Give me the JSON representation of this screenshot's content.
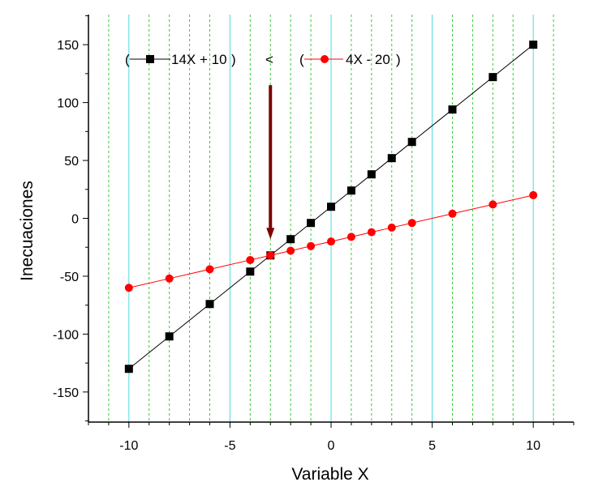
{
  "chart_data": {
    "type": "line",
    "xlabel": "Variable X",
    "ylabel": "Inecuaciones",
    "xlim": [
      -12,
      12
    ],
    "ylim": [
      -176,
      176
    ],
    "xticks": [
      -10,
      -5,
      0,
      5,
      10
    ],
    "yticks": [
      -150,
      -100,
      -50,
      0,
      50,
      100,
      150
    ],
    "grid": {
      "major_x": [
        -10,
        -5,
        0,
        5,
        10
      ],
      "minor_x": [
        -11,
        -9,
        -8,
        -7,
        -6,
        -4,
        -3,
        -2,
        -1,
        1,
        2,
        3,
        4,
        6,
        7,
        8,
        9,
        11
      ],
      "major_color": "#4dd9e0",
      "minor_color": "#33cc33"
    },
    "series": [
      {
        "name": "14X + 10",
        "color": "#000000",
        "marker": "square",
        "x": [
          -10,
          -8,
          -6,
          -4,
          -3,
          -2,
          -1,
          0,
          1,
          2,
          3,
          4,
          6,
          8,
          10
        ],
        "y": [
          -130,
          -102,
          -74,
          -46,
          -32,
          -18,
          -4,
          10,
          24,
          38,
          52,
          66,
          94,
          122,
          150
        ]
      },
      {
        "name": "4X - 20",
        "color": "#ff0000",
        "marker": "circle",
        "x": [
          -10,
          -8,
          -6,
          -4,
          -3,
          -2,
          -1,
          0,
          1,
          2,
          3,
          4,
          6,
          8,
          10
        ],
        "y": [
          -60,
          -52,
          -44,
          -36,
          -32,
          -28,
          -24,
          -20,
          -16,
          -12,
          -8,
          -4,
          4,
          12,
          20
        ]
      }
    ],
    "legend": {
      "placement": "top-left",
      "left_series_label": "14X + 10",
      "operator": "<",
      "right_series_label": "4X - 20",
      "open_paren": "(",
      "close_paren": ")"
    },
    "annotation": {
      "type": "arrow",
      "color": "#800000",
      "x": -3,
      "y_from": 115,
      "y_to": -18
    }
  }
}
